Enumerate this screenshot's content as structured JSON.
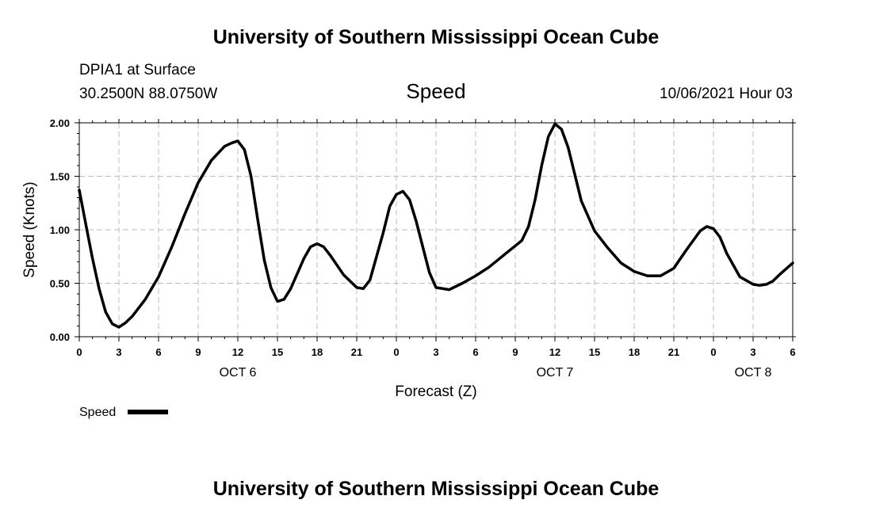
{
  "header": {
    "title_top": "University of Southern Mississippi Ocean Cube",
    "station": "DPIA1 at Surface",
    "coords": "30.2500N  88.0750W",
    "variable": "Speed",
    "datetime": "10/06/2021 Hour 03",
    "title_bottom": "University of Southern Mississippi Ocean Cube"
  },
  "legend": {
    "label": "Speed",
    "color": "#000000"
  },
  "chart_data": {
    "type": "line",
    "xlabel": "Forecast (Z)",
    "ylabel": "Speed (Knots)",
    "xlim": [
      0,
      54
    ],
    "ylim": [
      0,
      2.0
    ],
    "grid": true,
    "legend_position": "bottom-left",
    "x_ticks": [
      0,
      3,
      6,
      9,
      12,
      15,
      18,
      21,
      24,
      27,
      30,
      33,
      36,
      39,
      42,
      45,
      48,
      51,
      54
    ],
    "x_tick_labels": [
      "0",
      "3",
      "6",
      "9",
      "12",
      "15",
      "18",
      "21",
      "0",
      "3",
      "6",
      "9",
      "12",
      "15",
      "18",
      "21",
      "0",
      "3",
      "6"
    ],
    "y_ticks": [
      0,
      0.5,
      1.0,
      1.5,
      2.0
    ],
    "y_tick_labels": [
      "0.00",
      "0.50",
      "1.00",
      "1.50",
      "2.00"
    ],
    "date_labels": [
      {
        "x": 12,
        "label": "OCT 6"
      },
      {
        "x": 36,
        "label": "OCT 7"
      },
      {
        "x": 51,
        "label": "OCT 8"
      }
    ],
    "series": [
      {
        "name": "Speed",
        "color": "#000000",
        "x": [
          0,
          0.5,
          1,
          1.5,
          2,
          2.5,
          3,
          3.5,
          4,
          5,
          6,
          7,
          8,
          9,
          10,
          11,
          11.5,
          12,
          12.5,
          13,
          13.5,
          14,
          14.5,
          15,
          15.5,
          16,
          17,
          17.5,
          18,
          18.5,
          19,
          20,
          21,
          21.5,
          22,
          23,
          23.5,
          24,
          24.5,
          25,
          25.5,
          26,
          26.5,
          27,
          28,
          29,
          30,
          31,
          32,
          33,
          33.5,
          34,
          34.5,
          35,
          35.5,
          36,
          36.5,
          37,
          37.5,
          38,
          39,
          40,
          41,
          42,
          43,
          44,
          45,
          45.5,
          46,
          47,
          47.5,
          48,
          48.5,
          49,
          50,
          51,
          51.5,
          52,
          52.5,
          53,
          54
        ],
        "y": [
          1.37,
          1.05,
          0.73,
          0.45,
          0.23,
          0.12,
          0.09,
          0.13,
          0.19,
          0.35,
          0.56,
          0.84,
          1.15,
          1.44,
          1.65,
          1.78,
          1.81,
          1.83,
          1.75,
          1.5,
          1.1,
          0.72,
          0.46,
          0.33,
          0.35,
          0.45,
          0.73,
          0.84,
          0.87,
          0.84,
          0.76,
          0.58,
          0.46,
          0.45,
          0.53,
          0.97,
          1.22,
          1.33,
          1.36,
          1.28,
          1.08,
          0.84,
          0.6,
          0.46,
          0.44,
          0.5,
          0.57,
          0.65,
          0.75,
          0.85,
          0.9,
          1.03,
          1.28,
          1.6,
          1.87,
          1.99,
          1.94,
          1.77,
          1.52,
          1.27,
          0.99,
          0.83,
          0.69,
          0.61,
          0.57,
          0.57,
          0.64,
          0.73,
          0.82,
          0.99,
          1.03,
          1.01,
          0.93,
          0.78,
          0.56,
          0.49,
          0.48,
          0.49,
          0.52,
          0.58,
          0.69
        ]
      }
    ]
  }
}
